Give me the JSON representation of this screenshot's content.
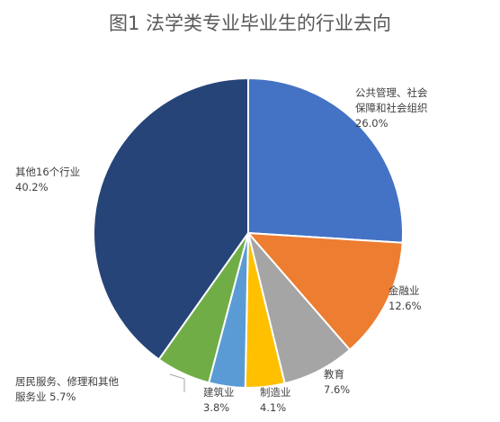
{
  "chart_data": {
    "type": "pie",
    "title": "图1 法学类专业毕业生的行业去向",
    "slices": [
      {
        "name": "公共管理、社会保障和社会组织",
        "label_lines": [
          "公共管理、社会",
          "保障和社会组织",
          "26.0%"
        ],
        "value": 26.0,
        "color": "#4472C4"
      },
      {
        "name": "金融业",
        "label_lines": [
          "金融业",
          "12.6%"
        ],
        "value": 12.6,
        "color": "#ED7D31"
      },
      {
        "name": "教育",
        "label_lines": [
          "教育",
          "7.6%"
        ],
        "value": 7.6,
        "color": "#A5A5A5"
      },
      {
        "name": "制造业",
        "label_lines": [
          "制造业",
          "4.1%"
        ],
        "value": 4.1,
        "color": "#FFC000"
      },
      {
        "name": "建筑业",
        "label_lines": [
          "建筑业",
          "3.8%"
        ],
        "value": 3.8,
        "color": "#5B9BD5"
      },
      {
        "name": "居民服务、修理和其他服务业",
        "label_lines": [
          "居民服务、修理和其他",
          "服务业 5.7%"
        ],
        "value": 5.7,
        "color": "#70AD47"
      },
      {
        "name": "其他16个行业",
        "label_lines": [
          "其他16个行业",
          "40.2%"
        ],
        "value": 40.2,
        "color": "#264478"
      }
    ],
    "legend": "none"
  }
}
